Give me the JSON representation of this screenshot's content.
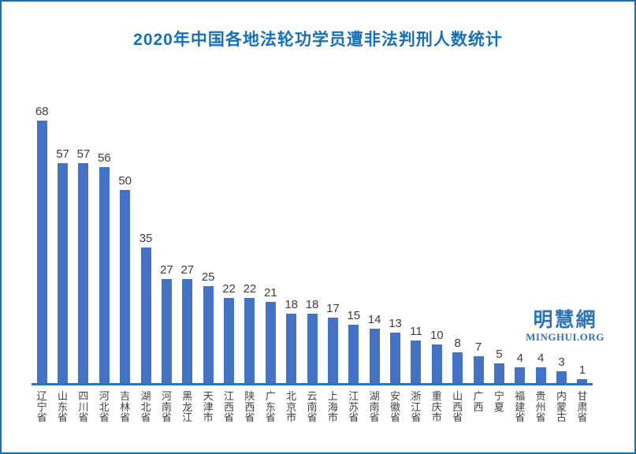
{
  "title": "2020年中国各地法轮功学员遭非法判刑人数统计",
  "title_color": "#1470bf",
  "border_color": "#1470bf",
  "watermark": {
    "cn": "明慧網",
    "en": "MINGHUI.ORG",
    "color": "#2e74b5"
  },
  "chart_data": {
    "type": "bar",
    "title": "2020年中国各地法轮功学员遭非法判刑人数统计",
    "categories": [
      "辽宁省",
      "山东省",
      "四川省",
      "河北省",
      "吉林省",
      "湖北省",
      "河南省",
      "黑龙江",
      "天津市",
      "江西省",
      "陕西省",
      "广东省",
      "北京市",
      "云南省",
      "上海市",
      "江苏省",
      "湖南省",
      "安徽省",
      "浙江省",
      "重庆市",
      "山西省",
      "广西",
      "宁夏",
      "福建省",
      "贵州省",
      "内蒙古",
      "甘肃省"
    ],
    "values": [
      68,
      57,
      57,
      56,
      50,
      35,
      27,
      27,
      25,
      22,
      22,
      21,
      18,
      18,
      17,
      15,
      14,
      13,
      11,
      10,
      8,
      7,
      5,
      4,
      4,
      3,
      1
    ],
    "bar_color": "#4472c4",
    "axis_color": "#2e75b6",
    "value_label_color": "#3d3d3d",
    "category_label_color": "#404040",
    "xlabel": "",
    "ylabel": "",
    "ylim": [
      0,
      68
    ],
    "gridlines": false,
    "legend": false,
    "data_labels": true
  }
}
